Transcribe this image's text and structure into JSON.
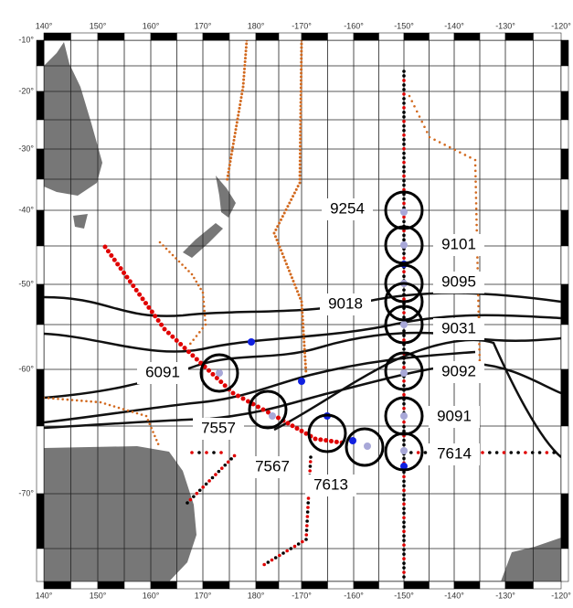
{
  "axes": {
    "longitude_labels": [
      "140°",
      "150°",
      "160°",
      "170°",
      "180°",
      "-170°",
      "-160°",
      "-150°",
      "-140°",
      "-130°",
      "-120°"
    ],
    "latitude_labels": [
      "-10°",
      "-20°",
      "-30°",
      "-40°",
      "-50°",
      "-60°",
      "-70°"
    ]
  },
  "stations": [
    "9254",
    "9101",
    "9095",
    "9018",
    "9031",
    "6091",
    "9092",
    "9091",
    "7557",
    "7614",
    "7567",
    "7613"
  ]
}
